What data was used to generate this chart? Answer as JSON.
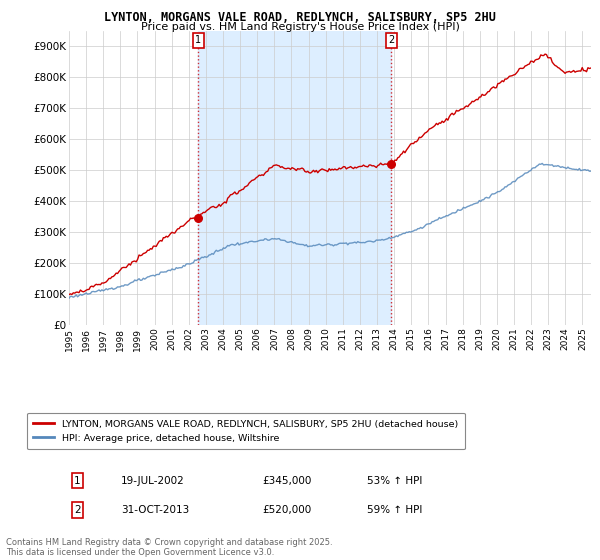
{
  "title": "LYNTON, MORGANS VALE ROAD, REDLYNCH, SALISBURY, SP5 2HU",
  "subtitle": "Price paid vs. HM Land Registry's House Price Index (HPI)",
  "legend_line1": "LYNTON, MORGANS VALE ROAD, REDLYNCH, SALISBURY, SP5 2HU (detached house)",
  "legend_line2": "HPI: Average price, detached house, Wiltshire",
  "footer": "Contains HM Land Registry data © Crown copyright and database right 2025.\nThis data is licensed under the Open Government Licence v3.0.",
  "transaction1_date": "19-JUL-2002",
  "transaction1_price": "£345,000",
  "transaction1_hpi": "53% ↑ HPI",
  "transaction2_date": "31-OCT-2013",
  "transaction2_price": "£520,000",
  "transaction2_hpi": "59% ↑ HPI",
  "red_color": "#cc0000",
  "blue_color": "#5588bb",
  "shade_color": "#ddeeff",
  "background_color": "#ffffff",
  "plot_bg_color": "#ffffff",
  "grid_color": "#cccccc",
  "marker1_x": 2002.55,
  "marker1_y": 345000,
  "marker2_x": 2013.83,
  "marker2_y": 520000,
  "ylim": [
    0,
    950000
  ],
  "xlim_start": 1995.0,
  "xlim_end": 2025.5
}
